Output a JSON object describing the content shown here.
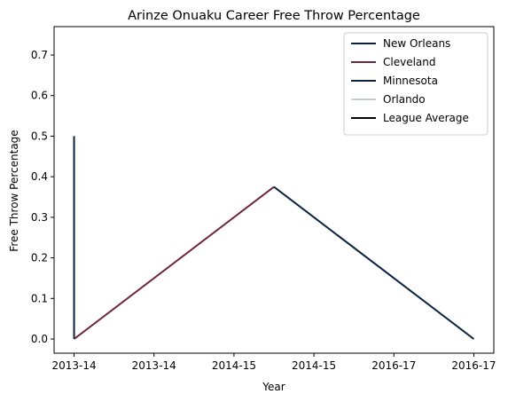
{
  "chart_data": {
    "type": "line",
    "title": "Arinze Onuaku Career Free Throw Percentage",
    "xlabel": "Year",
    "ylabel": "Free Throw Percentage",
    "xlim": [
      -0.1,
      2.1
    ],
    "ylim": [
      -0.035,
      0.77
    ],
    "x_ticks": [
      {
        "value": 0.0,
        "label": "2013-14"
      },
      {
        "value": 0.4,
        "label": "2013-14"
      },
      {
        "value": 0.8,
        "label": "2014-15"
      },
      {
        "value": 1.2,
        "label": "2014-15"
      },
      {
        "value": 1.6,
        "label": "2016-17"
      },
      {
        "value": 2.0,
        "label": "2016-17"
      }
    ],
    "y_ticks": [
      {
        "value": 0.0,
        "label": "0.0"
      },
      {
        "value": 0.1,
        "label": "0.1"
      },
      {
        "value": 0.2,
        "label": "0.2"
      },
      {
        "value": 0.3,
        "label": "0.3"
      },
      {
        "value": 0.4,
        "label": "0.4"
      },
      {
        "value": 0.5,
        "label": "0.5"
      },
      {
        "value": 0.6,
        "label": "0.6"
      },
      {
        "value": 0.7,
        "label": "0.7"
      }
    ],
    "grid": false,
    "legend_position": "top-right",
    "series": [
      {
        "name": "New Orleans",
        "color": "#0C2340",
        "x": [
          0,
          0
        ],
        "y": [
          0.0,
          0.5
        ]
      },
      {
        "name": "Cleveland",
        "color": "#6F263D",
        "x": [
          0,
          1
        ],
        "y": [
          0.0,
          0.375
        ]
      },
      {
        "name": "Minnesota",
        "color": "#0C2340",
        "x": [
          1,
          2
        ],
        "y": [
          0.375,
          0.0
        ]
      },
      {
        "name": "Orlando",
        "color": "#C4CED4",
        "x": [],
        "y": []
      },
      {
        "name": "League Average",
        "color": "#000000",
        "x": [],
        "y": []
      }
    ]
  }
}
